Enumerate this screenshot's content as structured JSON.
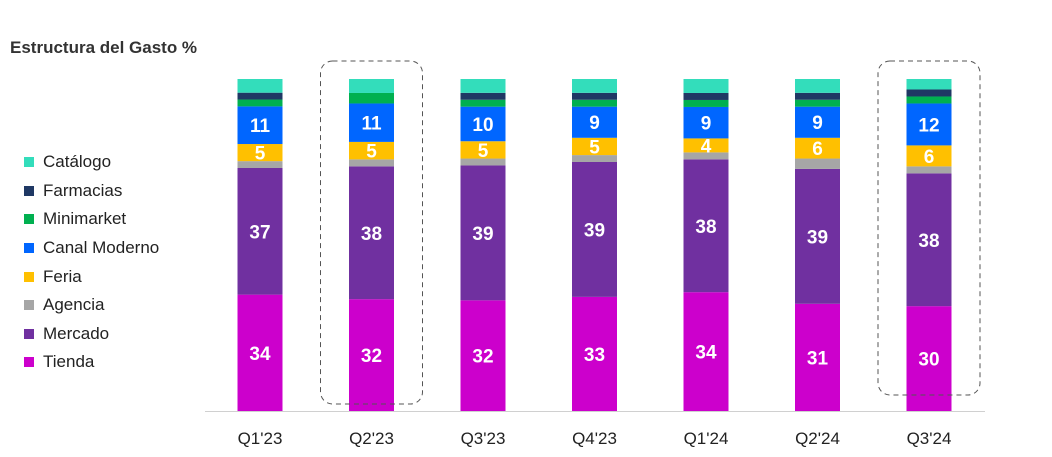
{
  "chart_data": {
    "type": "bar",
    "stacked": true,
    "title": "Estructura del Gasto %",
    "categories": [
      "Q1'23",
      "Q2'23",
      "Q3'23",
      "Q4'23",
      "Q1'24",
      "Q2'24",
      "Q3'24"
    ],
    "series": [
      {
        "name": "Tienda",
        "color": "#cc00cc",
        "values": [
          34,
          32,
          32,
          33,
          34,
          31,
          30
        ],
        "show_labels": true
      },
      {
        "name": "Mercado",
        "color": "#7030a0",
        "values": [
          37,
          38,
          39,
          39,
          38,
          39,
          38
        ],
        "show_labels": true
      },
      {
        "name": "Agencia",
        "color": "#a6a6a6",
        "values": [
          2,
          2,
          2,
          2,
          2,
          3,
          2
        ],
        "show_labels": false
      },
      {
        "name": "Feria",
        "color": "#ffc000",
        "values": [
          5,
          5,
          5,
          5,
          4,
          6,
          6
        ],
        "show_labels": true
      },
      {
        "name": "Canal Moderno",
        "color": "#0066ff",
        "values": [
          11,
          11,
          10,
          9,
          9,
          9,
          12
        ],
        "show_labels": true
      },
      {
        "name": "Minimarket",
        "color": "#00b050",
        "values": [
          2,
          3,
          2,
          2,
          2,
          2,
          2
        ],
        "show_labels": false
      },
      {
        "name": "Farmacias",
        "color": "#1f3864",
        "values": [
          2,
          0,
          2,
          2,
          2,
          2,
          2
        ],
        "show_labels": false
      },
      {
        "name": "Catálogo",
        "color": "#33ddbb",
        "values": [
          4,
          4,
          4,
          4,
          4,
          4,
          3
        ],
        "show_labels": false
      }
    ],
    "legend_order": [
      "Catálogo",
      "Farmacias",
      "Minimarket",
      "Canal Moderno",
      "Feria",
      "Agencia",
      "Mercado",
      "Tienda"
    ],
    "highlighted_categories": [
      "Q2'23",
      "Q3'24"
    ],
    "ylim": [
      0,
      100
    ],
    "legend_position": "left",
    "grid": false
  }
}
